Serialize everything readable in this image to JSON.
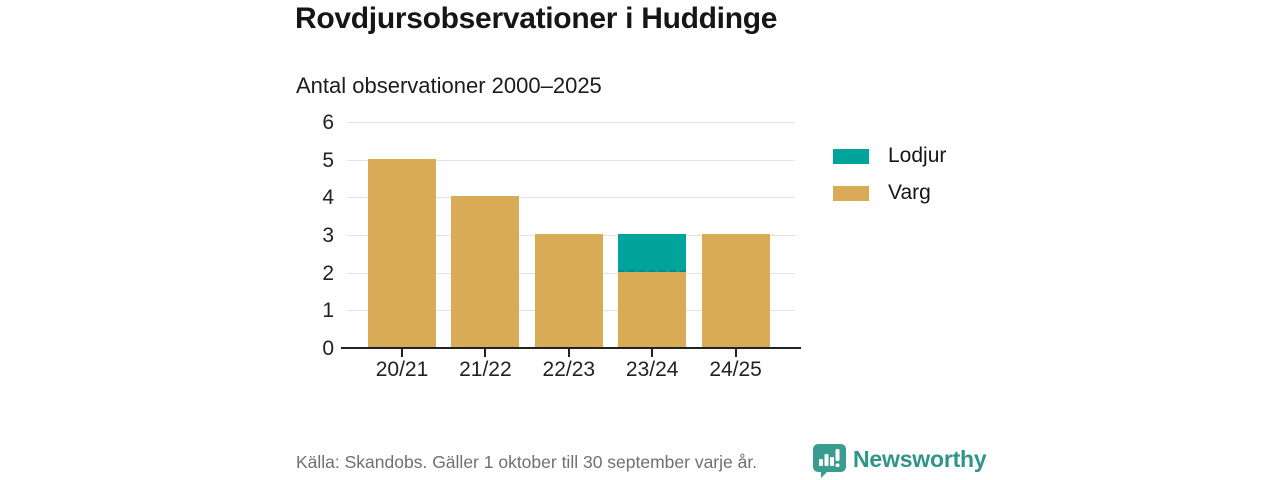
{
  "header": {
    "title": "Rovdjursobservationer i Huddinge",
    "subtitle": "Antal observationer 2000–2025"
  },
  "chart_data": {
    "type": "bar",
    "stacked": true,
    "categories": [
      "20/21",
      "21/22",
      "22/23",
      "23/24",
      "24/25"
    ],
    "series": [
      {
        "name": "Lodjur",
        "color": "#00a49a",
        "values": [
          0,
          0,
          0,
          1,
          0
        ]
      },
      {
        "name": "Varg",
        "color": "#d9ab57",
        "values": [
          5,
          4,
          3,
          2,
          3
        ]
      }
    ],
    "title": "Rovdjursobservationer i Huddinge",
    "subtitle": "Antal observationer 2000–2025",
    "xlabel": "",
    "ylabel": "",
    "ylim": [
      0,
      6
    ],
    "yticks": [
      0,
      1,
      2,
      3,
      4,
      5,
      6
    ],
    "grid": true,
    "legend_position": "right",
    "axis_color": "#222222",
    "gridline_color": "#e3e3e3"
  },
  "legend": {
    "items": [
      {
        "label": "Lodjur",
        "color": "#00a49a"
      },
      {
        "label": "Varg",
        "color": "#d9ab57"
      }
    ]
  },
  "footer": {
    "source_text": "Källa: Skandobs. Gäller 1 oktober till 30 september varje år.",
    "brand_name": "Newsworthy",
    "brand_color": "#2f9589"
  }
}
